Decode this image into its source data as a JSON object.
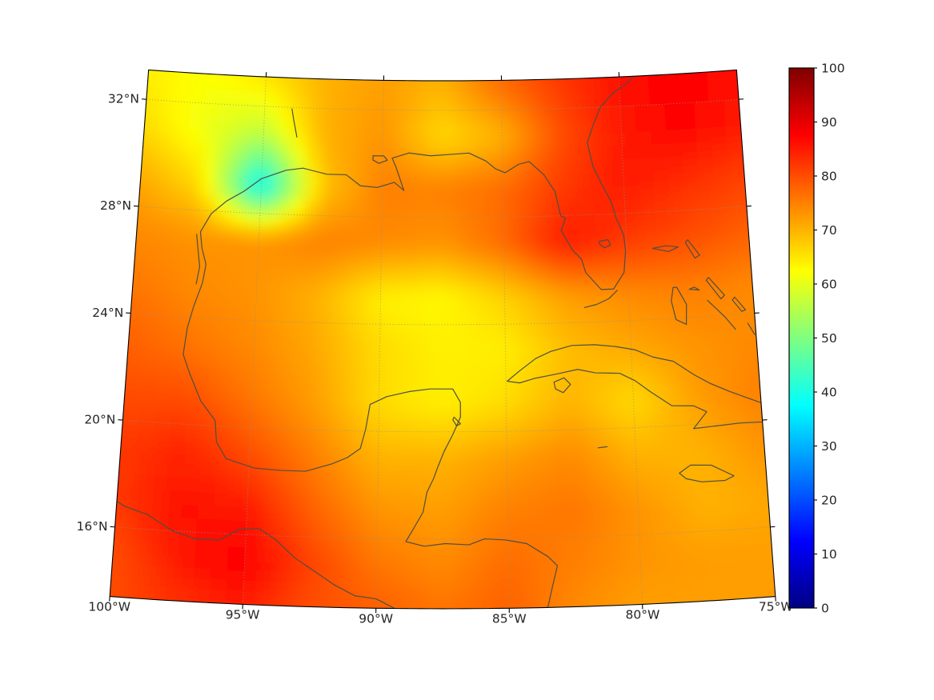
{
  "figure": {
    "background": "#ffffff"
  },
  "axes": {
    "lat_tick_labels": [
      "32°N",
      "28°N",
      "24°N",
      "20°N",
      "16°N"
    ],
    "lat_tick_values": [
      32,
      28,
      24,
      20,
      16
    ],
    "lon_tick_labels": [
      "100°W",
      "95°W",
      "90°W",
      "85°W",
      "80°W",
      "75°W"
    ],
    "lon_tick_values": [
      -100,
      -95,
      -90,
      -85,
      -80,
      -75
    ],
    "tick_color": "#000000",
    "label_color": "#262626",
    "gridline_color": "#909090"
  },
  "colorbar": {
    "min": 0,
    "max": 100,
    "tick_values": [
      0,
      10,
      20,
      30,
      40,
      50,
      60,
      70,
      80,
      90,
      100
    ],
    "tick_labels": [
      "0",
      "10",
      "20",
      "30",
      "40",
      "50",
      "60",
      "70",
      "80",
      "90",
      "100"
    ],
    "colormap": "jet",
    "stops": [
      {
        "t": 0.0,
        "color": "#000083"
      },
      {
        "t": 0.125,
        "color": "#0000ff"
      },
      {
        "t": 0.375,
        "color": "#00ffff"
      },
      {
        "t": 0.625,
        "color": "#ffff00"
      },
      {
        "t": 0.875,
        "color": "#ff0000"
      },
      {
        "t": 1.0,
        "color": "#800000"
      }
    ]
  },
  "chart_data": {
    "type": "heatmap",
    "title": "",
    "projection": "conic (Lambert-conformal style)",
    "lon_range": [
      -100,
      -75
    ],
    "lat_range": [
      13.4,
      33.1
    ],
    "vmin": 0,
    "vmax": 100,
    "colormap": "jet",
    "grid_lons": [
      -100,
      -97.5,
      -95,
      -92.5,
      -90,
      -87.5,
      -85,
      -82.5,
      -80,
      -77.5,
      -75
    ],
    "grid_lats": [
      33,
      31,
      29,
      27,
      25,
      23,
      21,
      19,
      17,
      15,
      13.5
    ],
    "values": [
      [
        64,
        62,
        65,
        70,
        72,
        70,
        77,
        82,
        86,
        88,
        86
      ],
      [
        66,
        61,
        56,
        70,
        73,
        66,
        70,
        80,
        85,
        87,
        85
      ],
      [
        71,
        66,
        36,
        68,
        75,
        75,
        77,
        82,
        85,
        83,
        81
      ],
      [
        74,
        73,
        73,
        75,
        74,
        73,
        77,
        85,
        82,
        80,
        78
      ],
      [
        76,
        74,
        73,
        70,
        64,
        63,
        67,
        72,
        74,
        75,
        74
      ],
      [
        78,
        76,
        74,
        71,
        66,
        64,
        64,
        69,
        71,
        73,
        74
      ],
      [
        80,
        80,
        76,
        72,
        66,
        64,
        66,
        70,
        66,
        72,
        75
      ],
      [
        82,
        84,
        80,
        75,
        70,
        70,
        72,
        74,
        70,
        70,
        73
      ],
      [
        82,
        86,
        85,
        78,
        73,
        72,
        75,
        76,
        73,
        70,
        71
      ],
      [
        80,
        85,
        88,
        81,
        76,
        74,
        77,
        75,
        73,
        72,
        72
      ],
      [
        80,
        83,
        85,
        80,
        78,
        76,
        78,
        74,
        72,
        72,
        72
      ]
    ]
  },
  "map": {
    "boundary": {
      "lon_min": -100,
      "lon_max": -75,
      "lat_min": 13.4,
      "lat_max": 33.1
    },
    "grid_lats": [
      16,
      20,
      24,
      28,
      32
    ],
    "grid_lons": [
      -95,
      -90,
      -85,
      -80
    ],
    "coastline_color": "#4e4e45",
    "coastlines": [
      {
        "name": "na-gulf-atlantic",
        "closed": false,
        "points": [
          [
            -95.9,
            18.8
          ],
          [
            -96.3,
            19.4
          ],
          [
            -96.4,
            20.2
          ],
          [
            -97.0,
            20.9
          ],
          [
            -97.5,
            21.9
          ],
          [
            -97.8,
            22.6
          ],
          [
            -97.7,
            23.6
          ],
          [
            -97.5,
            24.4
          ],
          [
            -97.2,
            25.3
          ],
          [
            -97.1,
            26.0
          ],
          [
            -97.3,
            26.6
          ],
          [
            -97.4,
            27.2
          ],
          [
            -97.0,
            27.9
          ],
          [
            -96.4,
            28.4
          ],
          [
            -95.7,
            28.8
          ],
          [
            -95.0,
            29.3
          ],
          [
            -94.0,
            29.65
          ],
          [
            -93.3,
            29.75
          ],
          [
            -92.3,
            29.55
          ],
          [
            -91.5,
            29.55
          ],
          [
            -90.9,
            29.15
          ],
          [
            -90.2,
            29.1
          ],
          [
            -89.5,
            29.3
          ],
          [
            -89.1,
            29.0
          ],
          [
            -89.45,
            29.9
          ],
          [
            -89.6,
            30.2
          ],
          [
            -88.9,
            30.4
          ],
          [
            -88.0,
            30.3
          ],
          [
            -87.2,
            30.35
          ],
          [
            -86.4,
            30.4
          ],
          [
            -85.7,
            30.1
          ],
          [
            -85.3,
            29.8
          ],
          [
            -84.9,
            29.65
          ],
          [
            -84.35,
            29.95
          ],
          [
            -83.9,
            30.05
          ],
          [
            -83.3,
            29.55
          ],
          [
            -82.85,
            28.9
          ],
          [
            -82.65,
            28.0
          ],
          [
            -82.45,
            27.9
          ],
          [
            -82.65,
            27.45
          ],
          [
            -82.2,
            26.7
          ],
          [
            -81.85,
            26.35
          ],
          [
            -81.7,
            25.85
          ],
          [
            -81.1,
            25.2
          ],
          [
            -80.6,
            25.2
          ],
          [
            -80.15,
            25.8
          ],
          [
            -80.05,
            26.6
          ],
          [
            -80.1,
            27.2
          ],
          [
            -80.4,
            27.9
          ],
          [
            -80.55,
            28.45
          ],
          [
            -80.9,
            29.1
          ],
          [
            -81.25,
            29.8
          ],
          [
            -81.45,
            30.7
          ],
          [
            -81.15,
            31.4
          ],
          [
            -80.85,
            32.0
          ],
          [
            -80.3,
            32.5
          ],
          [
            -79.6,
            32.9
          ],
          [
            -78.9,
            33.6
          ]
        ]
      },
      {
        "name": "padre-lagoon",
        "closed": false,
        "points": [
          [
            -97.55,
            27.1
          ],
          [
            -97.45,
            26.5
          ],
          [
            -97.35,
            25.9
          ],
          [
            -97.45,
            25.25
          ]
        ]
      },
      {
        "name": "pontchartrain",
        "closed": true,
        "points": [
          [
            -90.4,
            30.28
          ],
          [
            -89.95,
            30.28
          ],
          [
            -89.8,
            30.12
          ],
          [
            -90.15,
            30.0
          ],
          [
            -90.4,
            30.12
          ]
        ]
      },
      {
        "name": "toledo-bend",
        "closed": false,
        "points": [
          [
            -93.6,
            30.9
          ],
          [
            -93.75,
            31.5
          ],
          [
            -93.85,
            31.95
          ]
        ]
      },
      {
        "name": "okeechobee",
        "closed": true,
        "points": [
          [
            -81.1,
            27.0
          ],
          [
            -80.75,
            27.05
          ],
          [
            -80.65,
            26.85
          ],
          [
            -80.9,
            26.75
          ],
          [
            -81.1,
            26.9
          ]
        ]
      },
      {
        "name": "florida-keys",
        "closed": false,
        "points": [
          [
            -80.45,
            25.15
          ],
          [
            -80.8,
            24.85
          ],
          [
            -81.3,
            24.65
          ],
          [
            -81.8,
            24.55
          ]
        ]
      },
      {
        "name": "mexico-yucatan-centralamerica",
        "closed": false,
        "points": [
          [
            -95.9,
            18.8
          ],
          [
            -94.8,
            18.5
          ],
          [
            -93.8,
            18.45
          ],
          [
            -92.8,
            18.45
          ],
          [
            -91.8,
            18.75
          ],
          [
            -91.2,
            19.0
          ],
          [
            -90.7,
            19.35
          ],
          [
            -90.5,
            20.1
          ],
          [
            -90.35,
            21.0
          ],
          [
            -89.7,
            21.3
          ],
          [
            -88.8,
            21.5
          ],
          [
            -88.0,
            21.6
          ],
          [
            -87.1,
            21.6
          ],
          [
            -86.8,
            21.1
          ],
          [
            -86.8,
            20.55
          ],
          [
            -87.1,
            19.9
          ],
          [
            -87.45,
            19.25
          ],
          [
            -87.7,
            18.65
          ],
          [
            -87.85,
            18.25
          ],
          [
            -88.1,
            17.75
          ],
          [
            -88.25,
            17.0
          ],
          [
            -88.6,
            16.4
          ],
          [
            -88.9,
            15.9
          ],
          [
            -88.2,
            15.73
          ],
          [
            -87.4,
            15.83
          ],
          [
            -86.5,
            15.78
          ],
          [
            -85.9,
            16.0
          ],
          [
            -85.1,
            15.95
          ],
          [
            -84.3,
            15.8
          ],
          [
            -83.5,
            15.3
          ],
          [
            -83.15,
            14.95
          ],
          [
            -83.35,
            14.2
          ],
          [
            -83.55,
            13.4
          ],
          [
            -83.5,
            13.2
          ]
        ]
      },
      {
        "name": "cozumel",
        "closed": true,
        "points": [
          [
            -87.05,
            20.55
          ],
          [
            -86.8,
            20.3
          ],
          [
            -86.95,
            20.22
          ],
          [
            -87.1,
            20.45
          ]
        ]
      },
      {
        "name": "pacific-coast",
        "closed": false,
        "points": [
          [
            -100.6,
            17.3
          ],
          [
            -99.7,
            16.8
          ],
          [
            -98.8,
            16.55
          ],
          [
            -97.8,
            16.0
          ],
          [
            -96.9,
            15.75
          ],
          [
            -96.0,
            15.75
          ],
          [
            -95.25,
            16.2
          ],
          [
            -94.5,
            16.25
          ],
          [
            -93.85,
            15.85
          ],
          [
            -93.1,
            15.2
          ],
          [
            -92.3,
            14.7
          ],
          [
            -91.6,
            14.25
          ],
          [
            -90.8,
            13.85
          ],
          [
            -90.0,
            13.75
          ],
          [
            -89.3,
            13.4
          ],
          [
            -88.6,
            13.15
          ],
          [
            -88.3,
            12.9
          ]
        ]
      },
      {
        "name": "cuba",
        "closed": true,
        "points": [
          [
            -84.95,
            21.87
          ],
          [
            -84.45,
            22.25
          ],
          [
            -83.8,
            22.7
          ],
          [
            -83.2,
            22.95
          ],
          [
            -82.35,
            23.15
          ],
          [
            -81.45,
            23.15
          ],
          [
            -80.6,
            23.05
          ],
          [
            -79.85,
            22.9
          ],
          [
            -79.15,
            22.6
          ],
          [
            -78.35,
            22.4
          ],
          [
            -77.55,
            21.85
          ],
          [
            -76.95,
            21.5
          ],
          [
            -76.2,
            21.15
          ],
          [
            -75.6,
            20.9
          ],
          [
            -75.0,
            20.65
          ],
          [
            -75.0,
            19.93
          ],
          [
            -75.85,
            19.95
          ],
          [
            -76.85,
            19.9
          ],
          [
            -77.7,
            19.85
          ],
          [
            -77.15,
            20.45
          ],
          [
            -77.65,
            20.7
          ],
          [
            -78.5,
            20.75
          ],
          [
            -79.3,
            21.3
          ],
          [
            -79.9,
            21.75
          ],
          [
            -80.5,
            22.05
          ],
          [
            -81.45,
            22.1
          ],
          [
            -82.15,
            22.25
          ],
          [
            -83.0,
            22.1
          ],
          [
            -83.9,
            21.95
          ],
          [
            -84.45,
            21.8
          ]
        ]
      },
      {
        "name": "isla-juventud",
        "closed": true,
        "points": [
          [
            -83.1,
            21.8
          ],
          [
            -82.7,
            21.95
          ],
          [
            -82.45,
            21.7
          ],
          [
            -82.75,
            21.4
          ],
          [
            -83.05,
            21.55
          ]
        ]
      },
      {
        "name": "jamaica",
        "closed": true,
        "points": [
          [
            -78.35,
            18.22
          ],
          [
            -77.9,
            18.5
          ],
          [
            -77.1,
            18.45
          ],
          [
            -76.25,
            18.0
          ],
          [
            -76.6,
            17.85
          ],
          [
            -77.5,
            17.85
          ],
          [
            -78.1,
            18.0
          ]
        ]
      },
      {
        "name": "grand-bahama",
        "closed": true,
        "points": [
          [
            -78.95,
            26.65
          ],
          [
            -78.3,
            26.5
          ],
          [
            -77.9,
            26.65
          ],
          [
            -78.4,
            26.72
          ]
        ]
      },
      {
        "name": "abaco",
        "closed": true,
        "points": [
          [
            -77.5,
            26.9
          ],
          [
            -77.05,
            26.3
          ],
          [
            -77.25,
            26.2
          ],
          [
            -77.6,
            26.8
          ]
        ]
      },
      {
        "name": "andros",
        "closed": true,
        "points": [
          [
            -78.05,
            25.15
          ],
          [
            -77.7,
            24.5
          ],
          [
            -77.75,
            23.75
          ],
          [
            -78.15,
            23.95
          ],
          [
            -78.3,
            24.65
          ],
          [
            -78.2,
            25.15
          ]
        ]
      },
      {
        "name": "new-providence",
        "closed": true,
        "points": [
          [
            -77.55,
            25.05
          ],
          [
            -77.15,
            25.0
          ],
          [
            -77.35,
            25.12
          ]
        ]
      },
      {
        "name": "eleuthera",
        "closed": true,
        "points": [
          [
            -76.75,
            25.45
          ],
          [
            -76.15,
            24.75
          ],
          [
            -76.3,
            24.62
          ],
          [
            -76.85,
            25.35
          ]
        ]
      },
      {
        "name": "cat-island",
        "closed": true,
        "points": [
          [
            -75.75,
            24.65
          ],
          [
            -75.35,
            24.15
          ],
          [
            -75.5,
            24.1
          ],
          [
            -75.85,
            24.55
          ]
        ]
      },
      {
        "name": "exuma-chain",
        "closed": false,
        "points": [
          [
            -76.85,
            24.6
          ],
          [
            -76.2,
            23.95
          ],
          [
            -75.8,
            23.45
          ]
        ]
      },
      {
        "name": "long-island-bahamas",
        "closed": false,
        "points": [
          [
            -75.3,
            23.65
          ],
          [
            -75.05,
            23.2
          ]
        ]
      },
      {
        "name": "cayman",
        "closed": false,
        "points": [
          [
            -81.45,
            19.3
          ],
          [
            -81.1,
            19.33
          ]
        ]
      }
    ]
  }
}
